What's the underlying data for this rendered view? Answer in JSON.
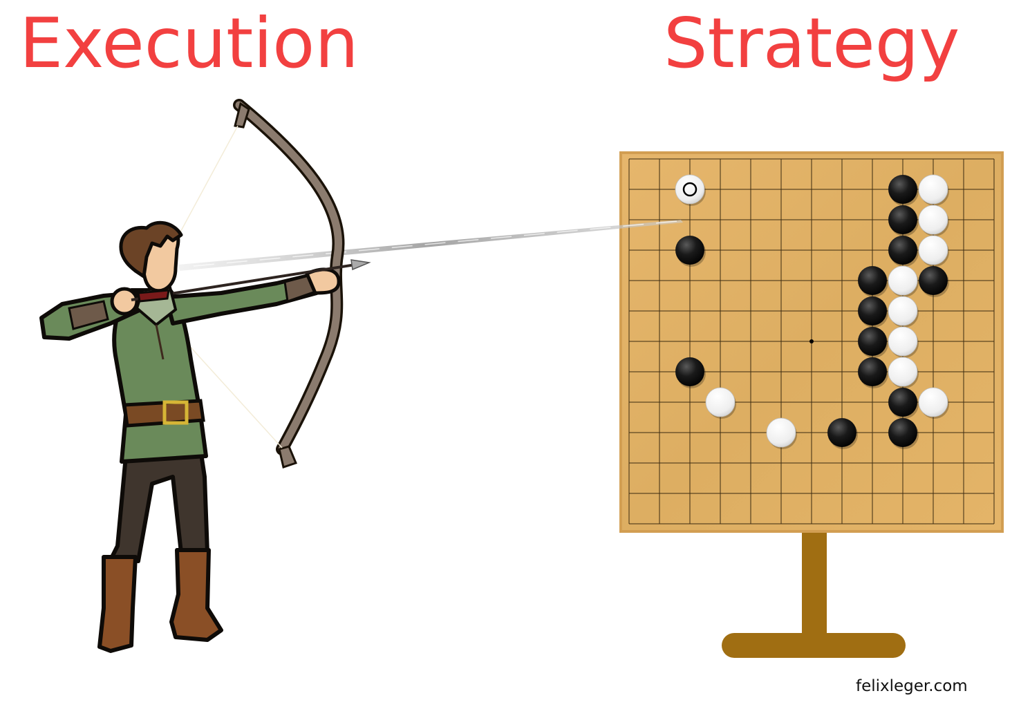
{
  "titles": {
    "left": "Execution",
    "right": "Strategy"
  },
  "credit": "felixleger.com",
  "colors": {
    "title": "#f24040",
    "board": "#e2b266",
    "board_edge": "#d29e52",
    "stand": "#a06e12"
  },
  "board": {
    "size": 13,
    "star_point": [
      6,
      6
    ],
    "highlight_stone": [
      1,
      2
    ],
    "black": [
      [
        3,
        2
      ],
      [
        1,
        9
      ],
      [
        2,
        9
      ],
      [
        3,
        9
      ],
      [
        4,
        8
      ],
      [
        5,
        8
      ],
      [
        6,
        8
      ],
      [
        7,
        8
      ],
      [
        8,
        9
      ],
      [
        9,
        9
      ],
      [
        7,
        2
      ],
      [
        9,
        7
      ],
      [
        4,
        10
      ]
    ],
    "white": [
      [
        1,
        2
      ],
      [
        1,
        10
      ],
      [
        2,
        10
      ],
      [
        3,
        10
      ],
      [
        4,
        9
      ],
      [
        5,
        9
      ],
      [
        6,
        9
      ],
      [
        7,
        9
      ],
      [
        8,
        10
      ],
      [
        8,
        3
      ],
      [
        9,
        5
      ]
    ]
  }
}
